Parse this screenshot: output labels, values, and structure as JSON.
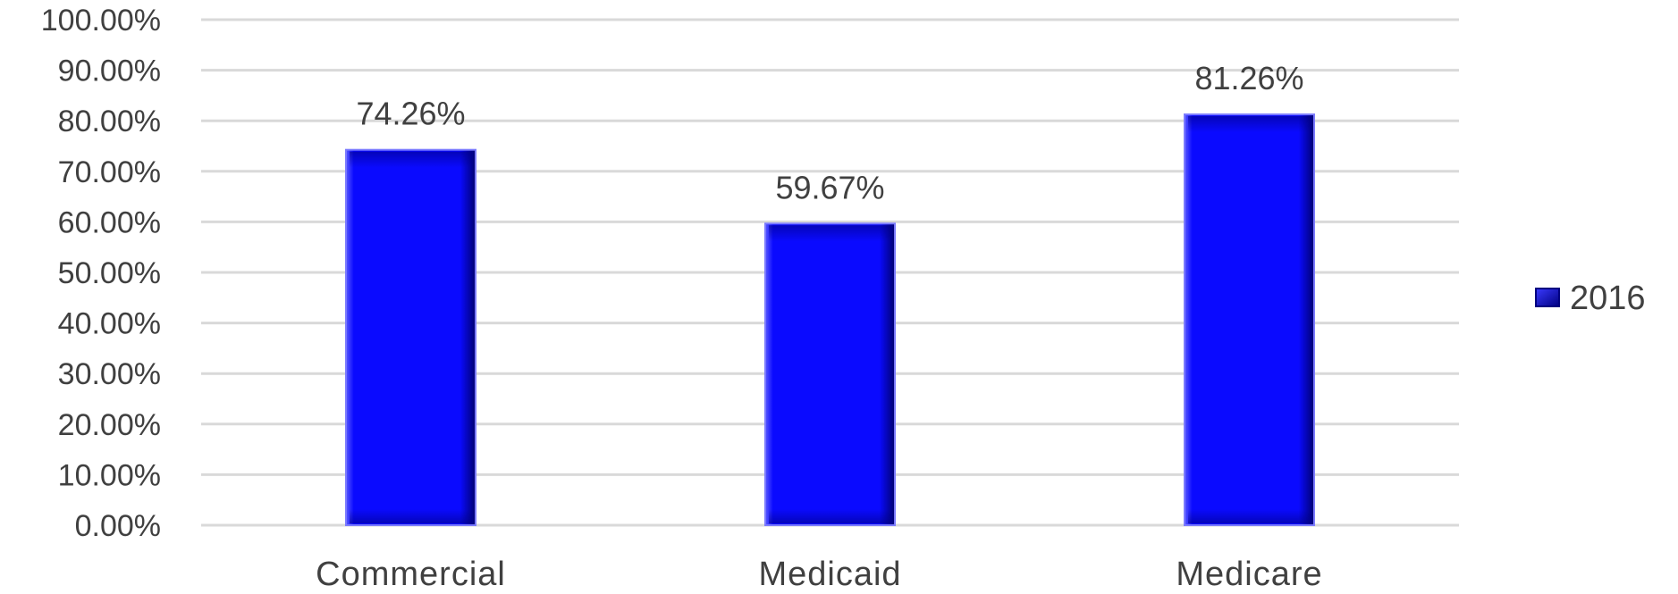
{
  "chart_data": {
    "type": "bar",
    "categories": [
      "Commercial",
      "Medicaid",
      "Medicare"
    ],
    "series": [
      {
        "name": "2016",
        "values": [
          74.26,
          59.67,
          81.26
        ],
        "labels": [
          "74.26%",
          "59.67%",
          "81.26%"
        ]
      }
    ],
    "y_ticks": [
      "0.00%",
      "10.00%",
      "20.00%",
      "30.00%",
      "40.00%",
      "50.00%",
      "60.00%",
      "70.00%",
      "80.00%",
      "90.00%",
      "100.00%"
    ],
    "ylim": [
      0,
      100
    ],
    "grid": true,
    "legend_position": "right",
    "colors": {
      "bar": "#0a0aff",
      "bar_dark": "#000080",
      "bar_light": "#7b7bff",
      "grid": "#d9d9d9",
      "text": "#404040"
    }
  }
}
